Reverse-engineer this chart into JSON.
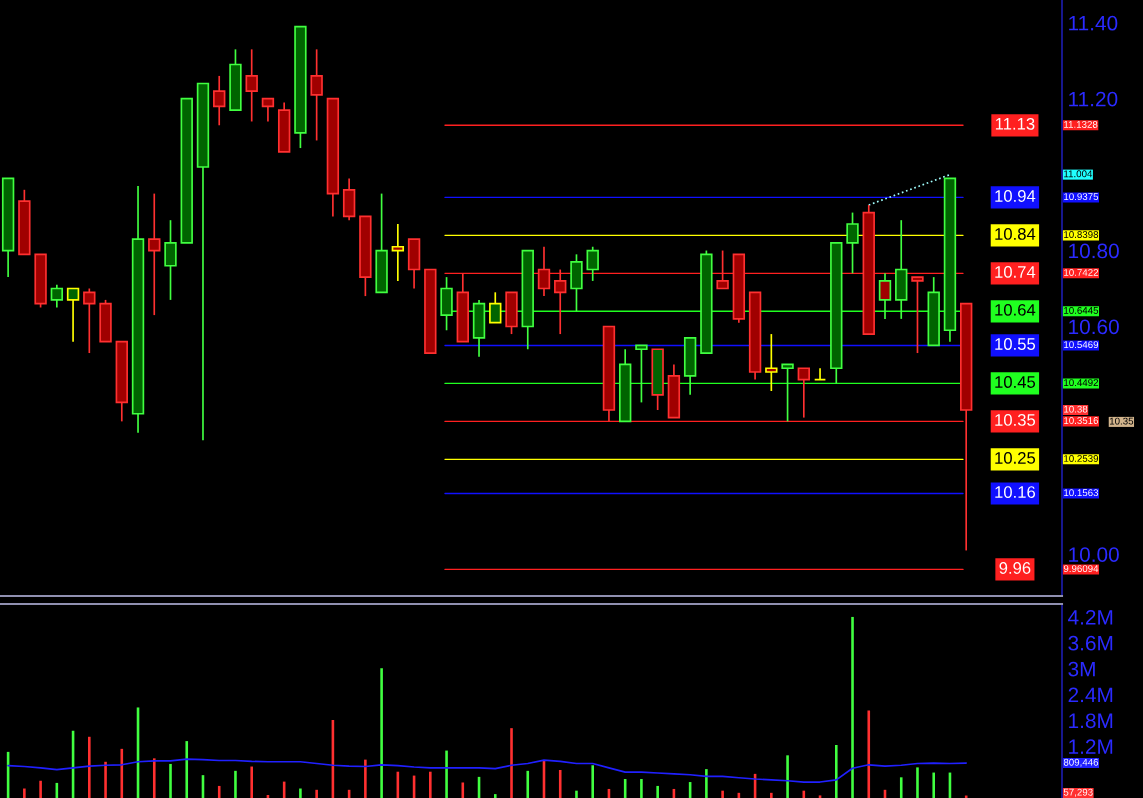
{
  "chart_data": [
    {
      "type": "candlestick",
      "categories": [
        null,
        null,
        null,
        null,
        null,
        null,
        null,
        null,
        null,
        null,
        null,
        null,
        null,
        null,
        null,
        null,
        null,
        null,
        null,
        null,
        null,
        null,
        null,
        null,
        null,
        null,
        null,
        null,
        null,
        null,
        null,
        null,
        null,
        null,
        null,
        null,
        null,
        null,
        null,
        null,
        null,
        null,
        null,
        null,
        null,
        null,
        null,
        null,
        null,
        null,
        null,
        null,
        null,
        null,
        null,
        null,
        null,
        null,
        null,
        null
      ],
      "ohlc": [
        [
          10.8,
          10.99,
          10.73,
          10.99
        ],
        [
          10.93,
          10.96,
          10.79,
          10.79
        ],
        [
          10.79,
          10.79,
          10.65,
          10.66
        ],
        [
          10.67,
          10.71,
          10.65,
          10.7
        ],
        [
          10.67,
          10.7,
          10.56,
          10.7
        ],
        [
          10.69,
          10.7,
          10.53,
          10.66
        ],
        [
          10.66,
          10.67,
          10.56,
          10.56
        ],
        [
          10.56,
          10.56,
          10.35,
          10.4
        ],
        [
          10.37,
          10.97,
          10.32,
          10.83
        ],
        [
          10.83,
          10.95,
          10.63,
          10.8
        ],
        [
          10.76,
          10.88,
          10.67,
          10.82
        ],
        [
          10.82,
          11.2,
          10.82,
          11.2
        ],
        [
          11.02,
          11.24,
          10.3,
          11.24
        ],
        [
          11.22,
          11.26,
          11.13,
          11.18
        ],
        [
          11.17,
          11.33,
          11.17,
          11.29
        ],
        [
          11.26,
          11.33,
          11.14,
          11.22
        ],
        [
          11.2,
          11.2,
          11.14,
          11.18
        ],
        [
          11.17,
          11.19,
          11.06,
          11.06
        ],
        [
          11.11,
          11.39,
          11.07,
          11.39
        ],
        [
          11.26,
          11.33,
          11.09,
          11.21
        ],
        [
          11.2,
          11.2,
          10.89,
          10.95
        ],
        [
          10.96,
          10.99,
          10.88,
          10.89
        ],
        [
          10.89,
          10.89,
          10.68,
          10.73
        ],
        [
          10.69,
          10.95,
          10.69,
          10.8
        ],
        [
          10.81,
          10.87,
          10.72,
          10.8
        ],
        [
          10.83,
          10.83,
          10.7,
          10.75
        ],
        [
          10.75,
          10.75,
          10.53,
          10.53
        ],
        [
          10.63,
          10.73,
          10.59,
          10.7
        ],
        [
          10.69,
          10.74,
          10.56,
          10.56
        ],
        [
          10.57,
          10.67,
          10.52,
          10.66
        ],
        [
          10.61,
          10.69,
          10.61,
          10.66
        ],
        [
          10.69,
          10.69,
          10.58,
          10.6
        ],
        [
          10.6,
          10.8,
          10.54,
          10.8
        ],
        [
          10.75,
          10.81,
          10.68,
          10.7
        ],
        [
          10.72,
          10.75,
          10.58,
          10.69
        ],
        [
          10.7,
          10.79,
          10.64,
          10.77
        ],
        [
          10.75,
          10.81,
          10.72,
          10.8
        ],
        [
          10.6,
          10.6,
          10.35,
          10.38
        ],
        [
          10.35,
          10.54,
          10.35,
          10.5
        ],
        [
          10.54,
          10.55,
          10.4,
          10.55
        ],
        [
          10.42,
          10.54,
          10.38,
          10.54
        ],
        [
          10.47,
          10.5,
          10.36,
          10.36
        ],
        [
          10.47,
          10.57,
          10.42,
          10.57
        ],
        [
          10.53,
          10.8,
          10.53,
          10.79
        ],
        [
          10.72,
          10.8,
          10.7,
          10.7
        ],
        [
          10.79,
          10.79,
          10.61,
          10.62
        ],
        [
          10.69,
          10.69,
          10.46,
          10.48
        ],
        [
          10.49,
          10.58,
          10.43,
          10.48
        ],
        [
          10.49,
          10.5,
          10.35,
          10.5
        ],
        [
          10.49,
          10.49,
          10.36,
          10.46
        ],
        [
          10.46,
          10.49,
          10.46,
          10.46
        ],
        [
          10.49,
          10.82,
          10.45,
          10.82
        ],
        [
          10.82,
          10.9,
          10.74,
          10.87
        ],
        [
          10.9,
          10.92,
          10.58,
          10.58
        ],
        [
          10.72,
          10.74,
          10.62,
          10.67
        ],
        [
          10.67,
          10.88,
          10.62,
          10.75
        ],
        [
          10.73,
          10.73,
          10.53,
          10.72
        ],
        [
          10.55,
          10.73,
          10.55,
          10.69
        ],
        [
          10.59,
          10.99,
          10.56,
          10.99
        ],
        [
          10.66,
          10.66,
          10.01,
          10.38
        ]
      ],
      "colors": [
        "#40ff40",
        "#ff3030",
        "#ff3030",
        "#40ff40",
        "#ffff00",
        "#ff3030",
        "#ff3030",
        "#ff3030",
        "#40ff40",
        "#ff3030",
        "#40ff40",
        "#40ff40",
        "#40ff40",
        "#ff3030",
        "#40ff40",
        "#ff3030",
        "#ff3030",
        "#ff3030",
        "#40ff40",
        "#ff3030",
        "#ff3030",
        "#ff3030",
        "#ff3030",
        "#40ff40",
        "#ffff00",
        "#ff3030",
        "#ff3030",
        "#40ff40",
        "#ff3030",
        "#40ff40",
        "#ffff00",
        "#ff3030",
        "#40ff40",
        "#ff3030",
        "#ff3030",
        "#40ff40",
        "#40ff40",
        "#ff3030",
        "#40ff40",
        "#40ff40",
        "#ff3030",
        "#ff3030",
        "#40ff40",
        "#40ff40",
        "#ff3030",
        "#ff3030",
        "#ff3030",
        "#ffff00",
        "#40ff40",
        "#ff3030",
        "#ffff00",
        "#40ff40",
        "#40ff40",
        "#ff3030",
        "#40ff40",
        "#40ff40",
        "#ff3030",
        "#40ff40",
        "#40ff40",
        "#ff3030"
      ],
      "series": [
        {
          "type": "line",
          "color": "#a0ffff",
          "line_style": "dotted",
          "values": [
            null,
            null,
            null,
            null,
            null,
            null,
            null,
            null,
            null,
            null,
            null,
            null,
            null,
            null,
            null,
            null,
            null,
            null,
            null,
            null,
            null,
            null,
            null,
            null,
            null,
            null,
            null,
            null,
            null,
            null,
            null,
            null,
            null,
            null,
            null,
            null,
            null,
            null,
            null,
            null,
            null,
            null,
            null,
            null,
            null,
            null,
            null,
            null,
            null,
            null,
            null,
            null,
            null,
            10.92,
            null,
            null,
            null,
            null,
            11.0,
            null
          ]
        }
      ],
      "ylim": [
        9.89,
        11.46
      ],
      "yticks": [
        {
          "value": 11.4,
          "label": "11.40"
        },
        {
          "value": 11.2,
          "label": "11.20"
        },
        {
          "value": 10.8,
          "label": "10.80"
        },
        {
          "value": 10.6,
          "label": "10.60"
        },
        {
          "value": 10.0,
          "label": "10.00"
        }
      ],
      "tick_labels": "y",
      "ref_lines": [
        {
          "axis": "y",
          "value": 11.13,
          "label": "11.13",
          "color": "#ff2020"
        },
        {
          "axis": "y",
          "value": 10.94,
          "label": "10.94",
          "color": "#1010ff"
        },
        {
          "axis": "y",
          "value": 10.84,
          "label": "10.84",
          "color": "#ffff00"
        },
        {
          "axis": "y",
          "value": 10.74,
          "label": "10.74",
          "color": "#ff2020"
        },
        {
          "axis": "y",
          "value": 10.64,
          "label": "10.64",
          "color": "#20ff20"
        },
        {
          "axis": "y",
          "value": 10.55,
          "label": "10.55",
          "color": "#1010ff"
        },
        {
          "axis": "y",
          "value": 10.45,
          "label": "10.45",
          "color": "#20ff20"
        },
        {
          "axis": "y",
          "value": 10.35,
          "label": "10.35",
          "color": "#ff2020"
        },
        {
          "axis": "y",
          "value": 10.25,
          "label": "10.25",
          "color": "#ffff00"
        },
        {
          "axis": "y",
          "value": 10.16,
          "label": "10.16",
          "color": "#1010ff"
        },
        {
          "axis": "y",
          "value": 9.96,
          "label": "9.96",
          "color": "#ff2020"
        }
      ],
      "annotations": [
        "11.1328",
        "10.9375",
        "10.8398",
        "10.7422",
        "10.6445",
        "10.5469",
        "10.4492",
        "10.3516",
        "10.2539",
        "10.1563",
        "9.96094",
        "11.004",
        "10.38",
        "10.35"
      ],
      "grid": false
    },
    {
      "type": "bar",
      "categories": [
        null,
        null,
        null,
        null,
        null,
        null,
        null,
        null,
        null,
        null,
        null,
        null,
        null,
        null,
        null,
        null,
        null,
        null,
        null,
        null,
        null,
        null,
        null,
        null,
        null,
        null,
        null,
        null,
        null,
        null,
        null,
        null,
        null,
        null,
        null,
        null,
        null,
        null,
        null,
        null,
        null,
        null,
        null,
        null,
        null,
        null,
        null,
        null,
        null,
        null,
        null,
        null,
        null,
        null,
        null,
        null,
        null,
        null,
        null,
        null
      ],
      "series": [
        {
          "type": "bar",
          "values": [
            1.07,
            0.22,
            0.4,
            0.35,
            1.56,
            1.42,
            0.84,
            1.14,
            2.1,
            0.92,
            0.79,
            1.32,
            0.53,
            0.28,
            0.63,
            0.73,
            0.07,
            0.38,
            0.22,
            0.19,
            1.81,
            0.19,
            0.89,
            3.01,
            0.61,
            0.52,
            0.61,
            1.1,
            0.36,
            0.49,
            0.09,
            1.62,
            0.63,
            0.88,
            0.65,
            0.17,
            0.76,
            0.21,
            0.44,
            0.44,
            0.28,
            0.21,
            0.37,
            0.67,
            0.17,
            0.12,
            0.56,
            0.12,
            0.99,
            0.17,
            0.06,
            1.23,
            4.2,
            2.03,
            0.19,
            0.48,
            0.71,
            0.59,
            0.59,
            0.057
          ],
          "colors": [
            "#40ff40",
            "#ff3030",
            "#ff3030",
            "#40ff40",
            "#40ff40",
            "#ff3030",
            "#ff3030",
            "#ff3030",
            "#40ff40",
            "#ff3030",
            "#40ff40",
            "#40ff40",
            "#40ff40",
            "#ff3030",
            "#40ff40",
            "#ff3030",
            "#ff3030",
            "#ff3030",
            "#40ff40",
            "#ff3030",
            "#ff3030",
            "#ff3030",
            "#ff3030",
            "#40ff40",
            "#ff3030",
            "#ff3030",
            "#ff3030",
            "#40ff40",
            "#ff3030",
            "#40ff40",
            "#40ff40",
            "#ff3030",
            "#40ff40",
            "#ff3030",
            "#ff3030",
            "#40ff40",
            "#40ff40",
            "#ff3030",
            "#40ff40",
            "#40ff40",
            "#40ff40",
            "#ff3030",
            "#40ff40",
            "#40ff40",
            "#ff3030",
            "#ff3030",
            "#ff3030",
            "#ff3030",
            "#40ff40",
            "#ff3030",
            "#ff3030",
            "#40ff40",
            "#40ff40",
            "#ff3030",
            "#ff3030",
            "#40ff40",
            "#40ff40",
            "#40ff40",
            "#40ff40",
            "#ff3030"
          ]
        },
        {
          "type": "line",
          "color": "#2020ff",
          "values": [
            0.75,
            0.73,
            0.7,
            0.66,
            0.7,
            0.74,
            0.76,
            0.77,
            0.84,
            0.86,
            0.86,
            0.9,
            0.89,
            0.87,
            0.87,
            0.85,
            0.84,
            0.84,
            0.84,
            0.8,
            0.76,
            0.74,
            0.73,
            0.77,
            0.75,
            0.72,
            0.7,
            0.7,
            0.7,
            0.7,
            0.68,
            0.76,
            0.8,
            0.88,
            0.85,
            0.8,
            0.8,
            0.7,
            0.6,
            0.6,
            0.58,
            0.56,
            0.54,
            0.5,
            0.5,
            0.47,
            0.44,
            0.42,
            0.4,
            0.37,
            0.37,
            0.42,
            0.69,
            0.77,
            0.74,
            0.76,
            0.8,
            0.81,
            0.8,
            0.81
          ]
        }
      ],
      "ylim": [
        0,
        4.5
      ],
      "yticks": [
        {
          "value": 1.2,
          "label": "1.2M"
        },
        {
          "value": 1.8,
          "label": "1.8M"
        },
        {
          "value": 2.4,
          "label": "2.4M"
        },
        {
          "value": 3.0,
          "label": "3M"
        },
        {
          "value": 3.6,
          "label": "3.6M"
        },
        {
          "value": 4.2,
          "label": "4.2M"
        }
      ],
      "tick_labels": "y",
      "annotations": [
        "57,293",
        "809,446"
      ],
      "grid": false
    }
  ]
}
